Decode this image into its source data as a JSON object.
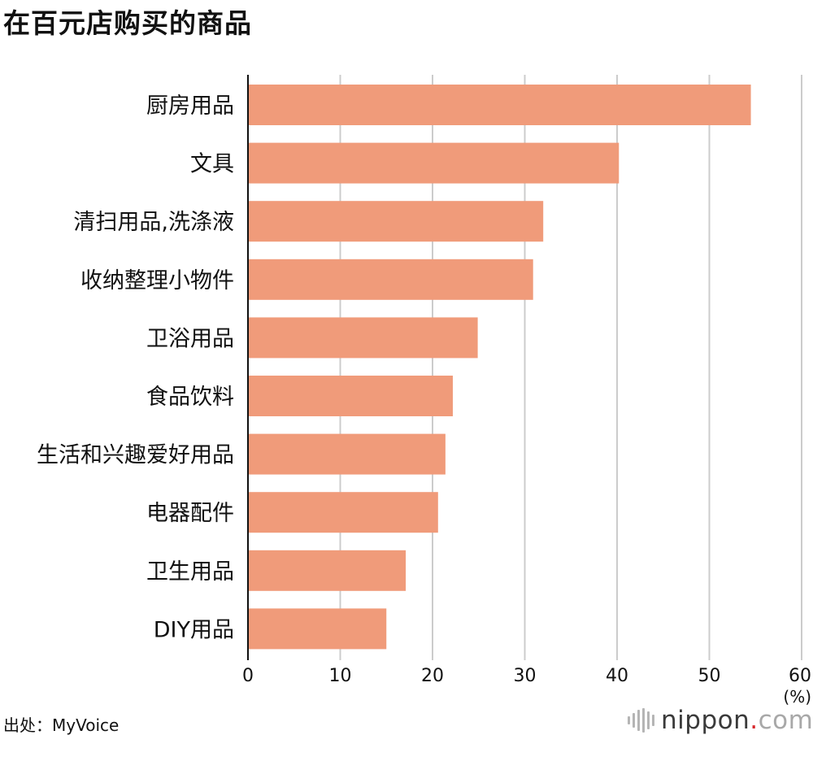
{
  "title": "在百元店购买的商品",
  "source": "出处：MyVoice",
  "logo": {
    "name": "nippon",
    "dot": ".",
    "tld": "com",
    "mark_icon": "nippon-soundwave-icon"
  },
  "colors": {
    "bar": "#f09b7a",
    "grid": "#cccccc",
    "axis": "#111111",
    "text": "#111111"
  },
  "chart_data": {
    "type": "bar",
    "orientation": "horizontal",
    "title": "在百元店购买的商品",
    "categories": [
      "厨房用品",
      "文具",
      "清扫用品,洗涤液",
      "收纳整理小物件",
      "卫浴用品",
      "食品饮料",
      "生活和兴趣爱好用品",
      "电器配件",
      "卫生用品",
      "DIY用品"
    ],
    "values": [
      54.5,
      40.2,
      32.0,
      30.9,
      24.9,
      22.2,
      21.4,
      20.6,
      17.1,
      15.0
    ],
    "xlim": [
      0,
      60
    ],
    "xticks": [
      0,
      10,
      20,
      30,
      40,
      50,
      60
    ],
    "xunit": "(%)",
    "grid": "vertical"
  }
}
